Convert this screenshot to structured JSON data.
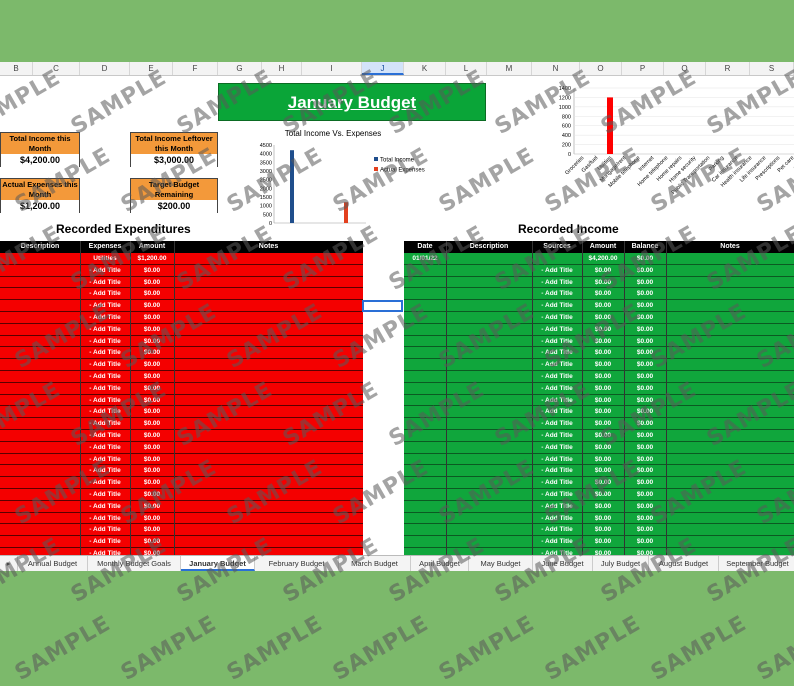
{
  "columns": [
    "B",
    "C",
    "D",
    "E",
    "F",
    "G",
    "H",
    "I",
    "J",
    "K",
    "L",
    "M",
    "N",
    "O",
    "P",
    "Q",
    "R",
    "S"
  ],
  "title": "January Budget",
  "boxes": {
    "income_label": "Total Income this Month",
    "income_value": "$4,200.00",
    "leftover_label": "Total Income Leftover this Month",
    "leftover_value": "$3,000.00",
    "expenses_label": "Actual Expenses this Month",
    "expenses_value": "$1,200.00",
    "target_label": "Target Budget Remaining",
    "target_value": "$200.00"
  },
  "chart1": {
    "title": "Total Income Vs. Expenses"
  },
  "chart_data": [
    {
      "type": "bar",
      "title": "Total Income Vs. Expenses",
      "categories": [
        ""
      ],
      "series": [
        {
          "name": "Total Income",
          "values": [
            4200
          ],
          "color": "#1f4e8c"
        },
        {
          "name": "Actual Expenses",
          "values": [
            1200
          ],
          "color": "#e3401e"
        }
      ],
      "ylim": [
        0,
        4500
      ],
      "yticks": [
        "4500",
        "4000",
        "3500",
        "3000",
        "2500",
        "2000",
        "1500",
        "1000",
        "500",
        "0"
      ],
      "legend": "right"
    },
    {
      "type": "bar",
      "title": "",
      "categories": [
        "Groceries",
        "Gas/fuel",
        "Utilities",
        "Mortgage/rent",
        "Mobile telephone",
        "Internet",
        "Home telephone",
        "Home repairs",
        "Home security",
        "Public Transportation",
        "Parking",
        "Car insurance",
        "Health insurance",
        "Life insurance",
        "Prescriptions",
        "Pet care",
        "Charity"
      ],
      "values": [
        0,
        0,
        1200,
        0,
        0,
        0,
        0,
        0,
        0,
        0,
        0,
        0,
        0,
        0,
        0,
        0,
        0
      ],
      "ylim": [
        0,
        1400
      ],
      "yticks": [
        "1400",
        "1200",
        "1000",
        "800",
        "600",
        "400",
        "200",
        "0"
      ],
      "color": "#ff0000"
    }
  ],
  "expenditures": {
    "title": "Recorded Expenditures",
    "headers": [
      "Description",
      "Expenses",
      "Amount",
      "Notes"
    ],
    "first_row": {
      "expense": "Utilities",
      "amount": "$1,200.00"
    },
    "row_expense": "- Add Title",
    "row_amount": "$0.00"
  },
  "income": {
    "title": "Recorded Income",
    "headers": [
      "Date",
      "Description",
      "Sources",
      "Amount",
      "Balance",
      "Notes"
    ],
    "first_row": {
      "date": "01/01/22",
      "amount": "$4,200.00",
      "balance": "$0.00"
    },
    "row_source": "- Add Title",
    "row_amount": "$0.00",
    "row_balance": "$0.00"
  },
  "sheet_tabs": [
    "Annual Budget",
    "Monthly Budget Goals",
    "January Budget",
    "February Budget",
    "March Budget",
    "April Budget",
    "May Budget",
    "June Budget",
    "July Budget",
    "August Budget",
    "September Budget"
  ],
  "active_tab": "January Budget",
  "watermark": "SAMPLE"
}
